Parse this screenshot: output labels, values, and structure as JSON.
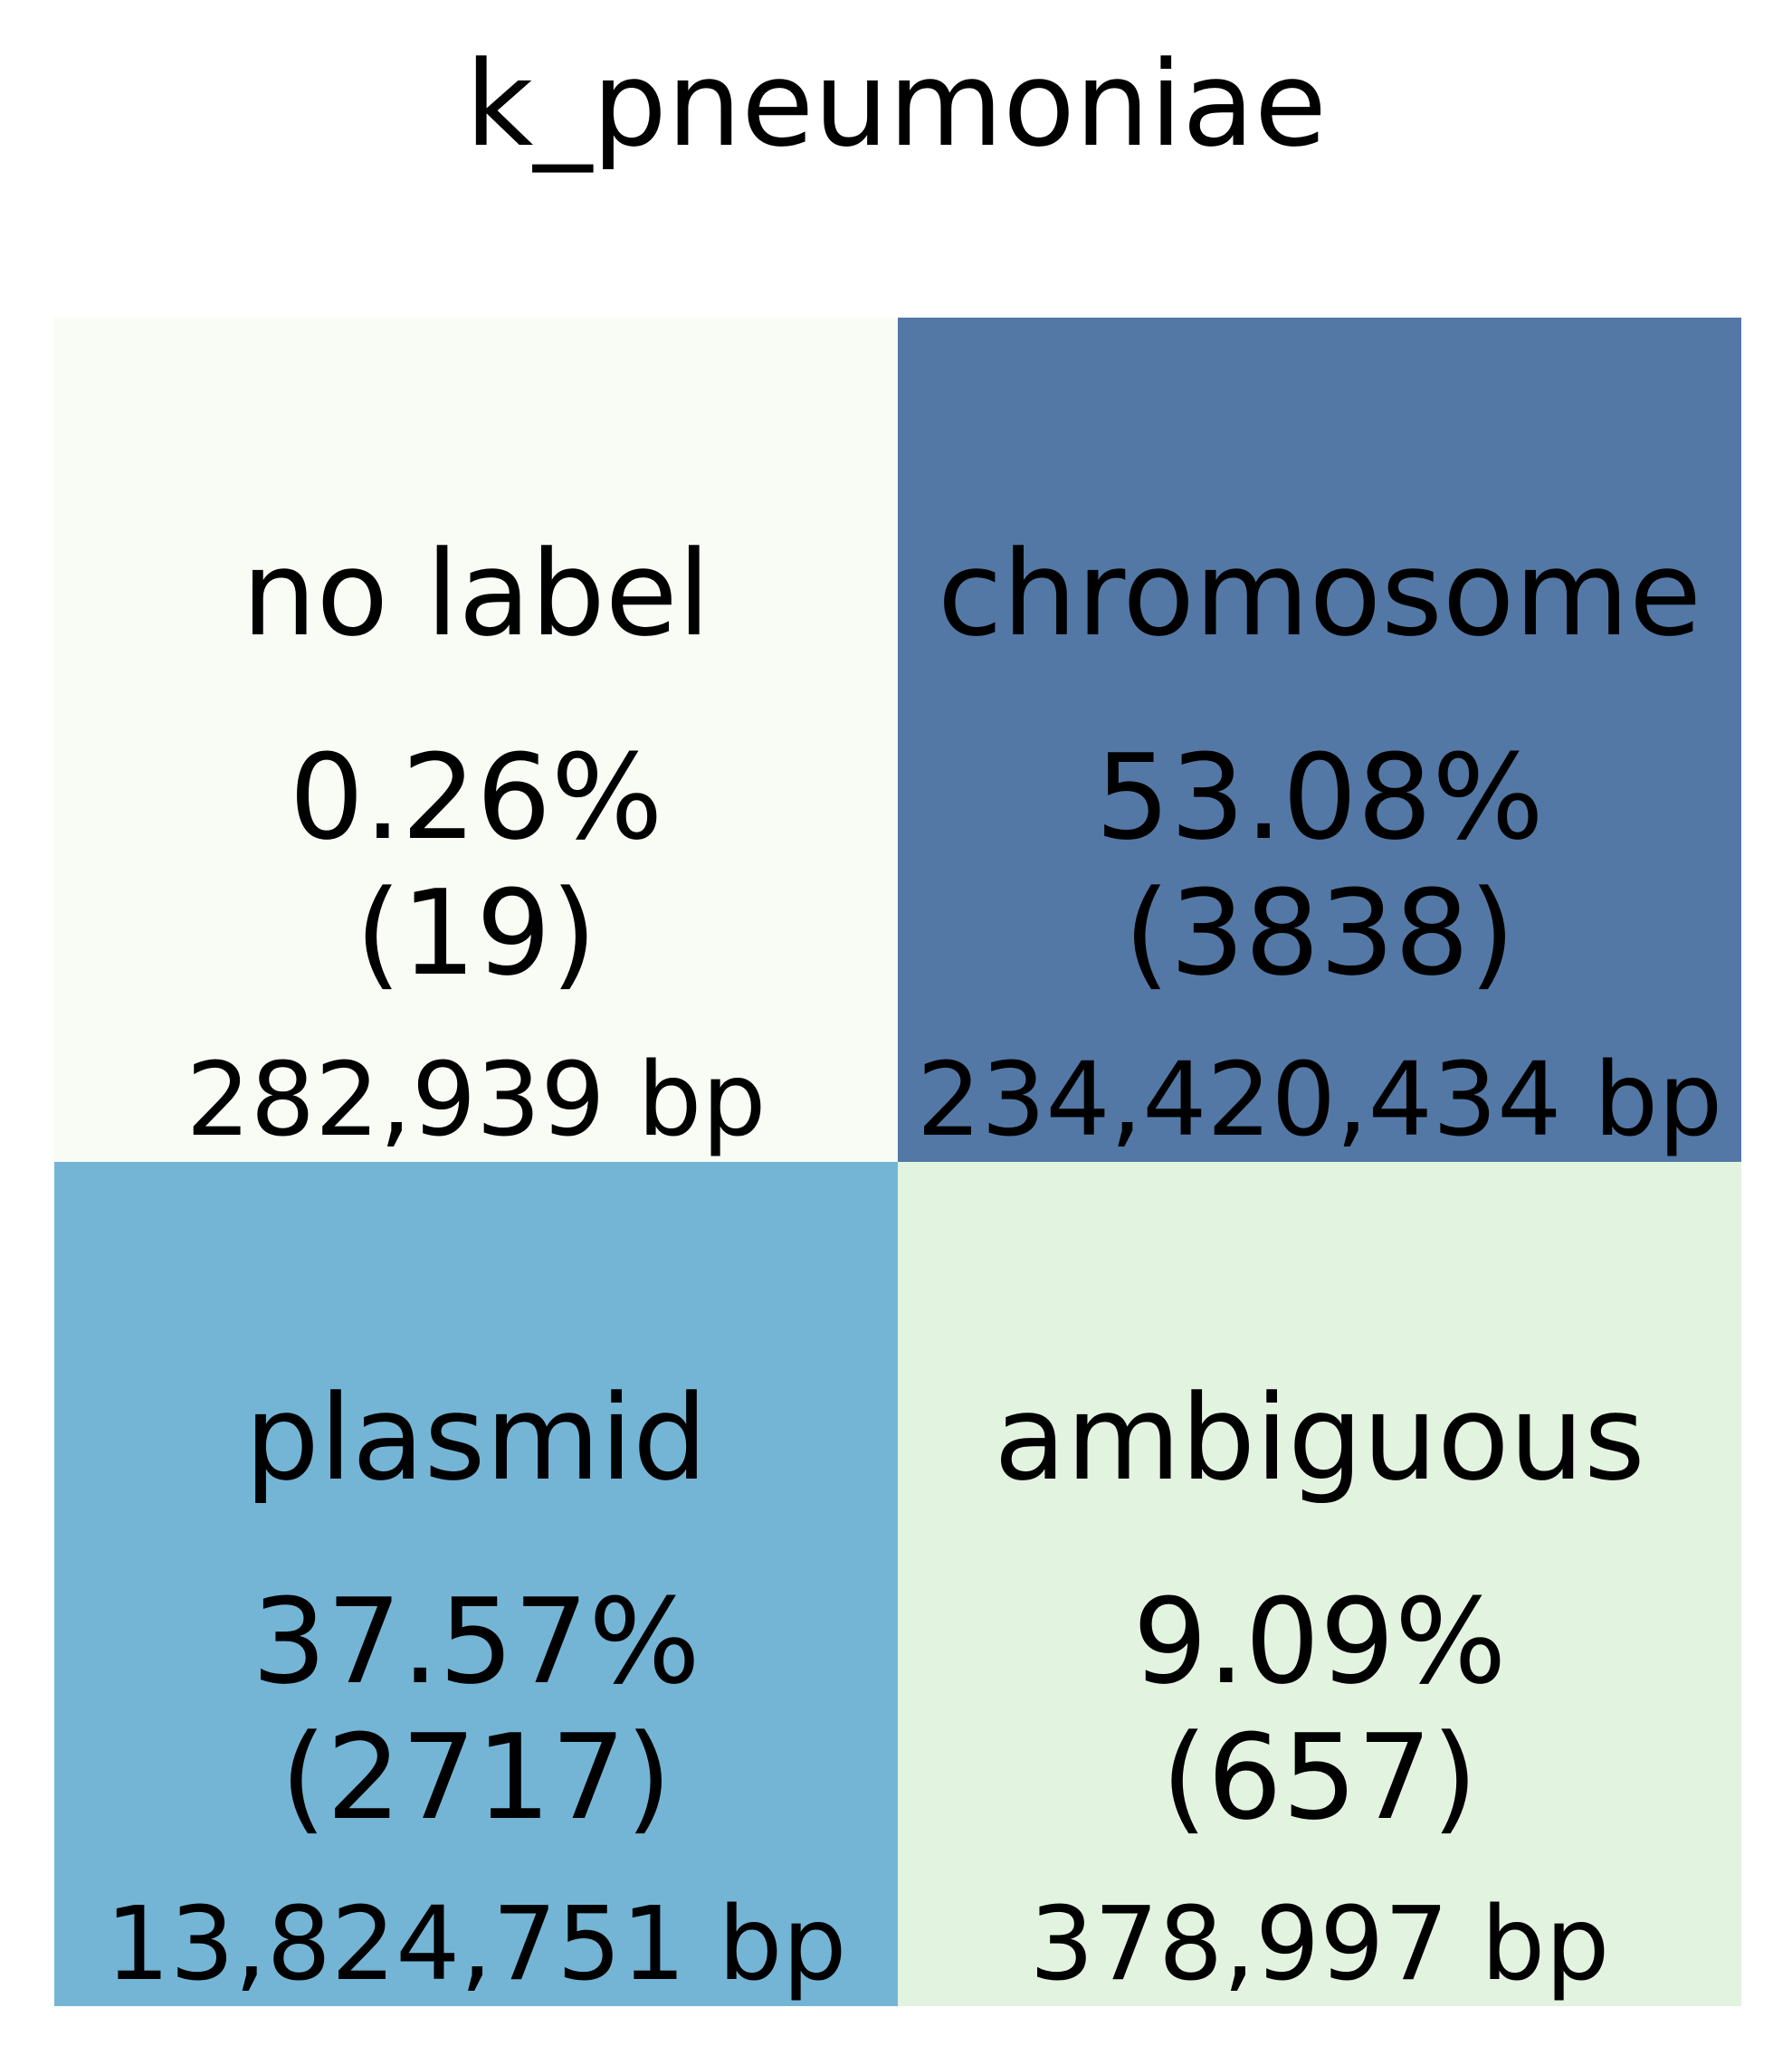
{
  "chart_data": {
    "type": "heatmap",
    "title": "k_pneumoniae",
    "rows": 2,
    "cols": 2,
    "cells": [
      {
        "label": "no label",
        "percent": "0.26%",
        "count": "(19)",
        "bp": "282,939 bp",
        "fraction": 0.0026,
        "color": "#f8fcf5"
      },
      {
        "label": "chromosome",
        "percent": "53.08%",
        "count": "(3838)",
        "bp": "234,420,434 bp",
        "fraction": 0.5308,
        "color": "#5378a5"
      },
      {
        "label": "plasmid",
        "percent": "37.57%",
        "count": "(2717)",
        "bp": "13,824,751 bp",
        "fraction": 0.3757,
        "color": "#74b5d6"
      },
      {
        "label": "ambiguous",
        "percent": "9.09%",
        "count": "(657)",
        "bp": "378,997 bp",
        "fraction": 0.0909,
        "color": "#e2f3e0"
      }
    ]
  }
}
